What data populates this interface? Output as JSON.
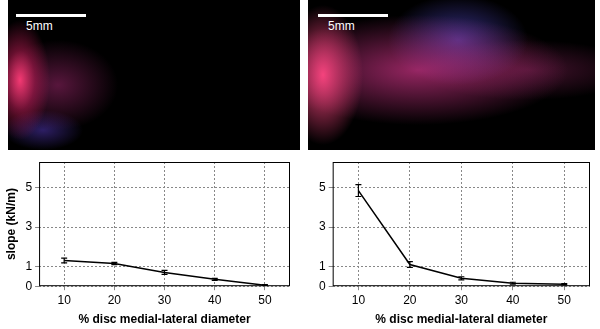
{
  "chart_data": [
    {
      "type": "line",
      "annotations": [
        "5mm"
      ],
      "x": [
        10,
        20,
        30,
        40,
        50
      ],
      "values": [
        1.3,
        1.15,
        0.7,
        0.35,
        0.05
      ],
      "errors": [
        0.12,
        0.06,
        0.1,
        0.05,
        0.03
      ],
      "color": "#000000",
      "xlabel": "% disc medial-lateral diameter",
      "ylabel": "slope (kN/m)",
      "xlim": [
        5,
        55
      ],
      "xticks": [
        10,
        20,
        30,
        40,
        50
      ],
      "ylim": [
        0,
        6.3
      ],
      "yticks": [
        0,
        1,
        3,
        5
      ],
      "grid": true
    },
    {
      "type": "line",
      "annotations": [
        "5mm"
      ],
      "x": [
        10,
        20,
        30,
        40,
        50
      ],
      "values": [
        4.85,
        1.1,
        0.4,
        0.15,
        0.1
      ],
      "errors": [
        0.3,
        0.15,
        0.08,
        0.05,
        0.03
      ],
      "color": "#000000",
      "xlabel": "% disc medial-lateral diameter",
      "xlim": [
        5,
        55
      ],
      "xticks": [
        10,
        20,
        30,
        40,
        50
      ],
      "ylim": [
        0,
        6.3
      ],
      "yticks": [
        0,
        1,
        3,
        5
      ],
      "grid": true
    }
  ]
}
